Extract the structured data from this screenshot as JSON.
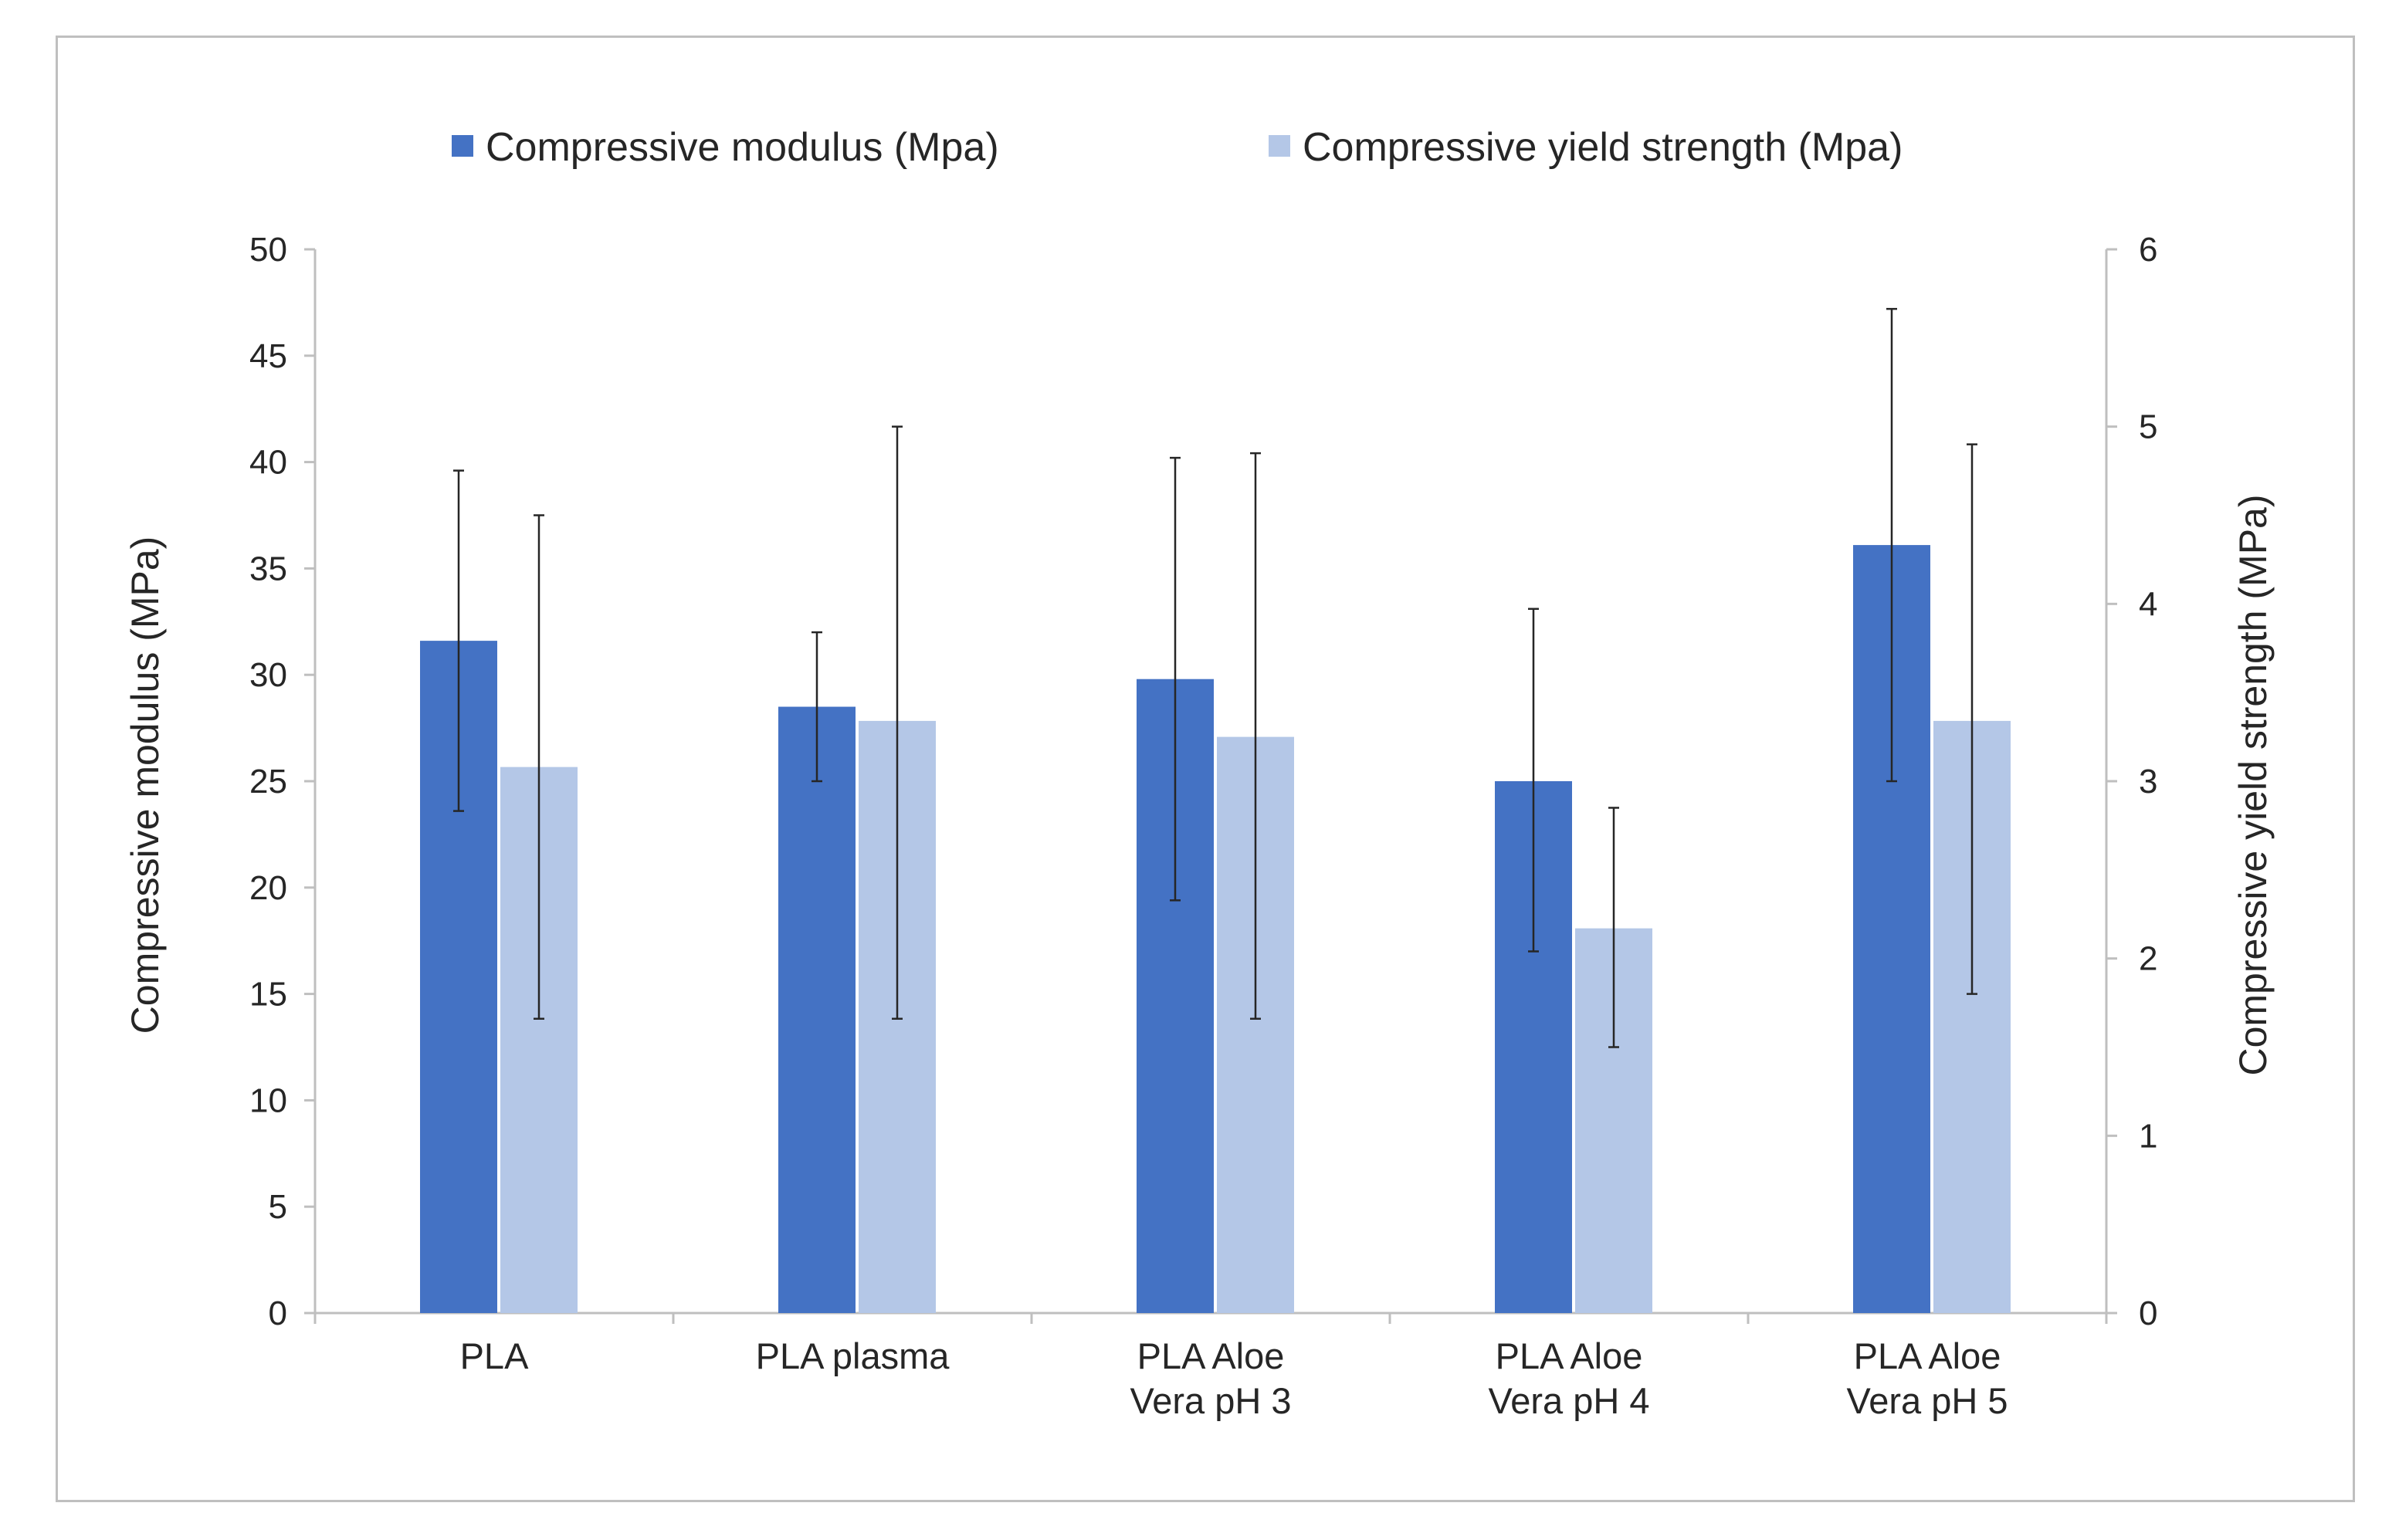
{
  "chart_data": {
    "type": "bar",
    "categories": [
      [
        "PLA"
      ],
      [
        "PLA plasma"
      ],
      [
        "PLA Aloe",
        "Vera pH 3"
      ],
      [
        "PLA Aloe",
        "Vera pH 4"
      ],
      [
        "PLA Aloe",
        "Vera pH 5"
      ]
    ],
    "series": [
      {
        "name": "Compressive modulus (Mpa)",
        "axis": "left",
        "color": "#4472c4",
        "values": [
          31.6,
          28.5,
          29.8,
          25.0,
          36.1
        ],
        "error_high": [
          39.6,
          32.0,
          40.2,
          33.1,
          47.2
        ],
        "error_low": [
          23.6,
          25.0,
          19.4,
          17.0,
          25.0
        ]
      },
      {
        "name": "Compressive yield strength (Mpa)",
        "axis": "right",
        "color": "#b4c7e7",
        "values": [
          3.08,
          3.34,
          3.25,
          2.17,
          3.34
        ],
        "error_high": [
          4.5,
          5.0,
          4.85,
          2.85,
          4.9
        ],
        "error_low": [
          1.66,
          1.66,
          1.66,
          1.5,
          1.8
        ]
      }
    ],
    "y_left": {
      "label": "Compressive modulus (MPa)",
      "range": [
        0,
        50
      ],
      "ticks": [
        0,
        5,
        10,
        15,
        20,
        25,
        30,
        35,
        40,
        45,
        50
      ]
    },
    "y_right": {
      "label": "Compressive yield strength (MPa)",
      "range": [
        0,
        6
      ],
      "ticks": [
        0,
        1,
        2,
        3,
        4,
        5,
        6
      ]
    },
    "legend": {
      "position": "top"
    },
    "grid": false
  }
}
